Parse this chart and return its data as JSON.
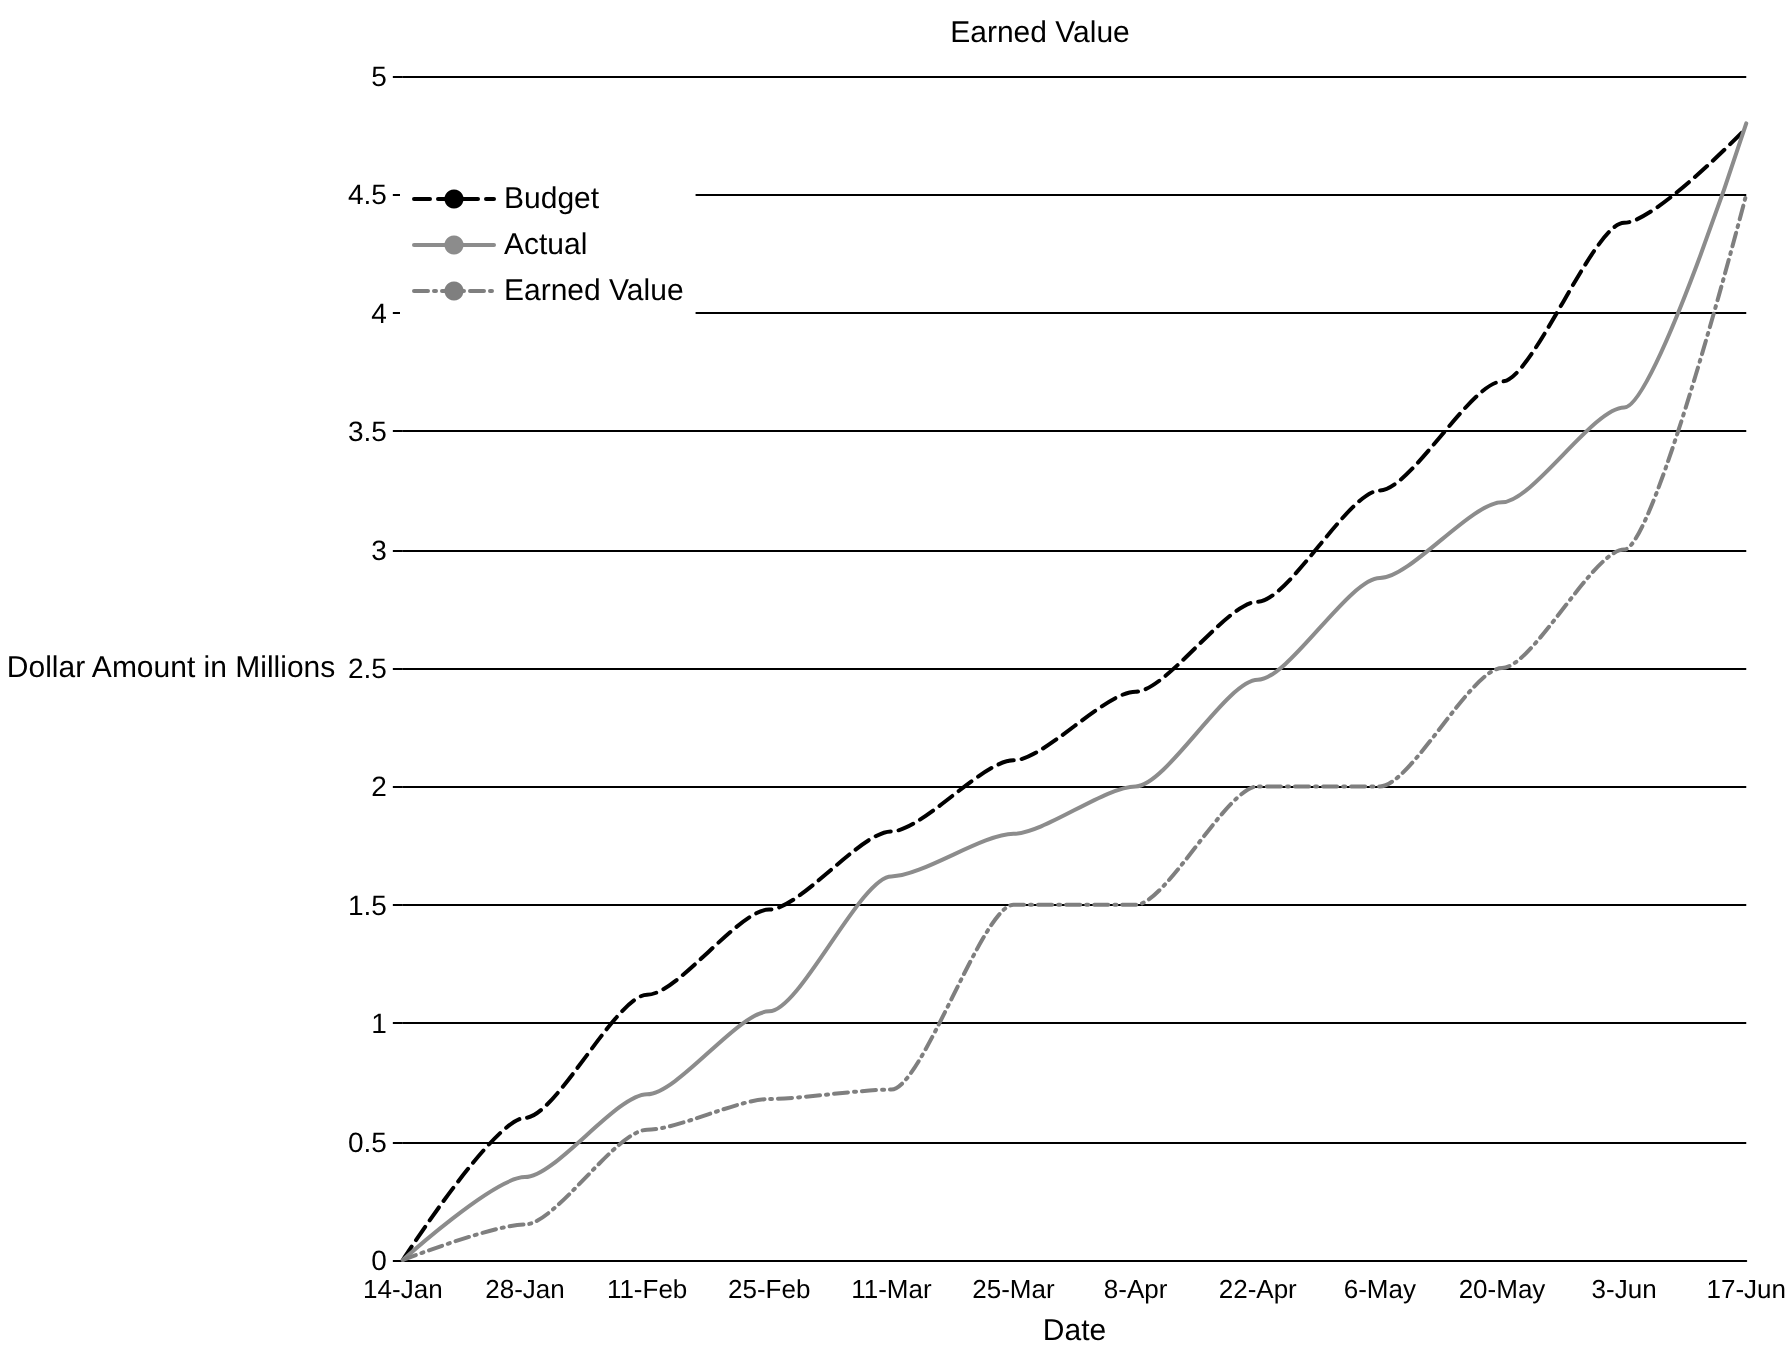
{
  "chart_data": {
    "type": "line",
    "title": "Earned Value",
    "xlabel": "Date",
    "ylabel": "Dollar Amount in Millions",
    "categories": [
      "14-Jan",
      "28-Jan",
      "11-Feb",
      "25-Feb",
      "11-Mar",
      "25-Mar",
      "8-Apr",
      "22-Apr",
      "6-May",
      "20-May",
      "3-Jun",
      "17-Jun"
    ],
    "series": [
      {
        "name": "Budget",
        "color": "#000000",
        "line_style": "dashed",
        "values": [
          0,
          0.6,
          1.12,
          1.48,
          1.81,
          2.11,
          2.4,
          2.78,
          3.25,
          3.71,
          4.38,
          4.78
        ]
      },
      {
        "name": "Actual",
        "color": "#8c8c8c",
        "line_style": "solid",
        "values": [
          0,
          0.35,
          0.7,
          1.05,
          1.62,
          1.8,
          2.0,
          2.45,
          2.88,
          3.2,
          3.6,
          4.8
        ]
      },
      {
        "name": "Earned Value",
        "color": "#7f7f7f",
        "line_style": "dotted",
        "values": [
          0,
          0.15,
          0.55,
          0.68,
          0.72,
          1.5,
          1.5,
          2.0,
          2.0,
          2.5,
          3.0,
          4.5
        ]
      }
    ],
    "ylim": [
      0,
      5
    ],
    "yticks": [
      0,
      0.5,
      1,
      1.5,
      2,
      2.5,
      3,
      3.5,
      4,
      4.5,
      5
    ],
    "grid": "y",
    "legend": "top left",
    "marker": "none"
  }
}
